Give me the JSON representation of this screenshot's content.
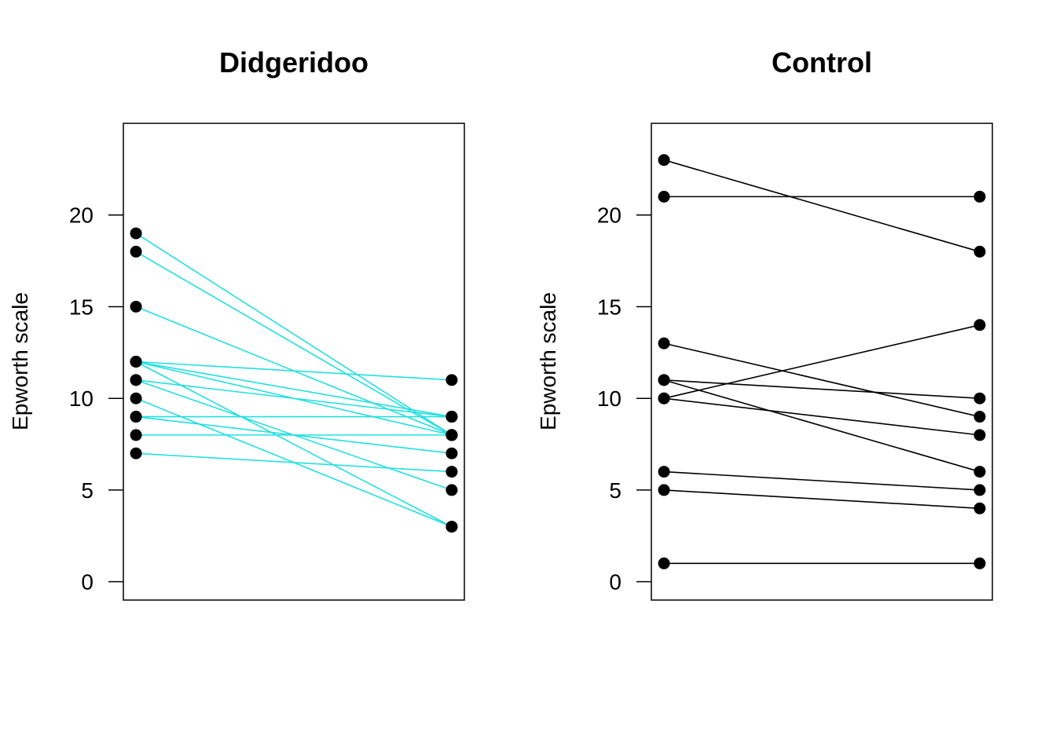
{
  "chart_data": [
    {
      "type": "line",
      "title": "Didgeridoo",
      "ylabel": "Epworth scale",
      "xlabel": "",
      "x": [
        1,
        2
      ],
      "xlim": [
        0.96,
        2.04
      ],
      "ylim": [
        -1,
        25
      ],
      "yticks": [
        "0",
        "5",
        "10",
        "15",
        "20"
      ],
      "line_color": "#22E0E0",
      "point_color": "#000000",
      "pairs": [
        [
          19,
          8
        ],
        [
          18,
          8
        ],
        [
          15,
          8
        ],
        [
          12,
          11
        ],
        [
          12,
          9
        ],
        [
          12,
          8
        ],
        [
          12,
          3
        ],
        [
          11,
          9
        ],
        [
          11,
          5
        ],
        [
          10,
          3
        ],
        [
          9,
          9
        ],
        [
          9,
          7
        ],
        [
          8,
          8
        ],
        [
          7,
          6
        ]
      ]
    },
    {
      "type": "line",
      "title": "Control",
      "ylabel": "Epworth scale",
      "xlabel": "",
      "x": [
        1,
        2
      ],
      "xlim": [
        0.96,
        2.04
      ],
      "ylim": [
        -1,
        25
      ],
      "yticks": [
        "0",
        "5",
        "10",
        "15",
        "20"
      ],
      "line_color": "#000000",
      "point_color": "#000000",
      "pairs": [
        [
          23,
          18
        ],
        [
          21,
          21
        ],
        [
          13,
          9
        ],
        [
          11,
          10
        ],
        [
          11,
          6
        ],
        [
          10,
          14
        ],
        [
          10,
          8
        ],
        [
          6,
          5
        ],
        [
          5,
          4
        ],
        [
          1,
          1
        ]
      ]
    }
  ]
}
